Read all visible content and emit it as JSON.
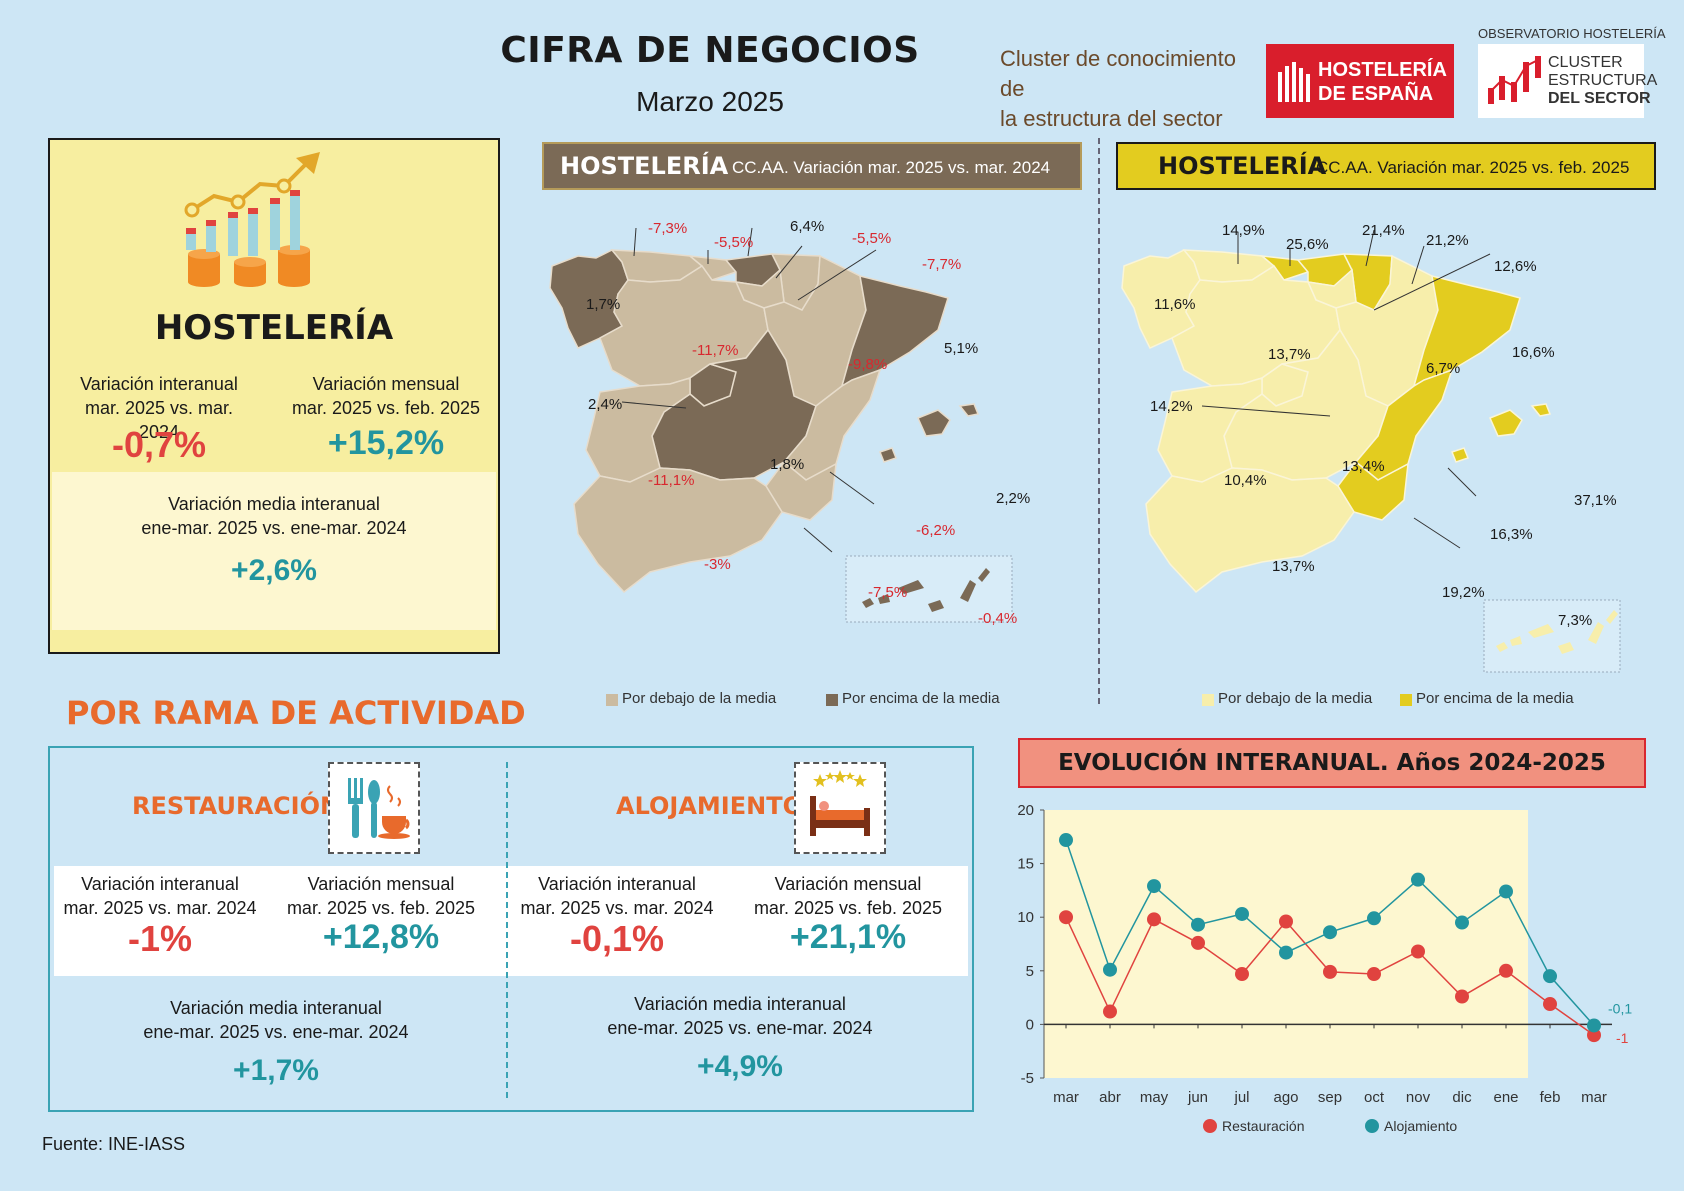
{
  "header": {
    "title": "CIFRA DE NEGOCIOS",
    "subtitle": "Marzo 2025",
    "cluster_text_1": "Cluster de conocimiento de",
    "cluster_text_2": "la estructura del sector",
    "logo_he_1": "HOSTELERÍA",
    "logo_he_2": "DE ESPAÑA",
    "obs_label": "OBSERVATORIO HOSTELERÍA",
    "logo_cl_1": "CLUSTER",
    "logo_cl_2": "ESTRUCTURA",
    "logo_cl_3": "DEL SECTOR"
  },
  "summary": {
    "heading": "HOSTELERÍA",
    "interanual_label_1": "Variación interanual",
    "interanual_label_2": "mar. 2025 vs. mar. 2024",
    "interanual_value": "-0,7%",
    "mensual_label_1": "Variación mensual",
    "mensual_label_2": "mar. 2025 vs. feb. 2025",
    "mensual_value": "+15,2%",
    "media_label_1": "Variación media interanual",
    "media_label_2": "ene-mar. 2025 vs. ene-mar. 2024",
    "media_value": "+2,6%"
  },
  "map_left": {
    "name": "HOSTELERÍA",
    "desc": "CC.AA. Variación mar. 2025 vs. mar. 2024",
    "labels": {
      "galicia": "1,7%",
      "asturias": "-7,3%",
      "cantabria": "-5,5%",
      "pvasco": "6,4%",
      "navarra": "-5,5%",
      "rioja": "-7,7%",
      "cyl": "-11,7%",
      "aragon": "-9,8%",
      "cataluna": "5,1%",
      "madrid": "2,4%",
      "clm": "1,8%",
      "extremadura": "-11,1%",
      "valencia": "-6,2%",
      "baleares": "2,2%",
      "andalucia": "-3%",
      "murcia": "-7,5%",
      "canarias": "-0,4%"
    },
    "legend_below": "Por debajo de la media",
    "legend_above": "Por encima de la media"
  },
  "map_right": {
    "name": "HOSTELERÍA",
    "desc": "CC.AA. Variación mar. 2025 vs. feb. 2025",
    "labels": {
      "asturias": "14,9%",
      "cantabria": "25,6%",
      "pvasco": "21,4%",
      "navarra": "21,2%",
      "rioja": "12,6%",
      "galicia": "11,6%",
      "cyl": "13,7%",
      "aragon": "6,7%",
      "cataluna": "16,6%",
      "madrid": "14,2%",
      "extremadura": "10,4%",
      "clm": "13,4%",
      "valencia": "16,3%",
      "baleares": "37,1%",
      "andalucia": "13,7%",
      "murcia": "19,2%",
      "canarias": "7,3%"
    },
    "legend_below": "Por debajo de la media",
    "legend_above": "Por encima de la media"
  },
  "rama": {
    "title": "POR RAMA DE ACTIVIDAD",
    "restauracion": {
      "name": "RESTAURACIÓN",
      "interanual_label_1": "Variación interanual",
      "interanual_label_2": "mar. 2025 vs. mar. 2024",
      "interanual_value": "-1%",
      "mensual_label_1": "Variación mensual",
      "mensual_label_2": "mar. 2025 vs. feb. 2025",
      "mensual_value": "+12,8%",
      "media_label_1": "Variación media interanual",
      "media_label_2": "ene-mar. 2025 vs. ene-mar. 2024",
      "media_value": "+1,7%"
    },
    "alojamiento": {
      "name": "ALOJAMIENTO",
      "interanual_label_1": "Variación interanual",
      "interanual_label_2": "mar. 2025 vs. mar. 2024",
      "interanual_value": "-0,1%",
      "mensual_label_1": "Variación mensual",
      "mensual_label_2": "mar. 2025 vs. feb. 2025",
      "mensual_value": "+21,1%",
      "media_label_1": "Variación media interanual",
      "media_label_2": "ene-mar. 2025 vs. ene-mar. 2024",
      "media_value": "+4,9%"
    }
  },
  "chart_data": {
    "type": "line",
    "title": "EVOLUCIÓN INTERANUAL. Años 2024-2025",
    "categories": [
      "mar",
      "abr",
      "may",
      "jun",
      "jul",
      "ago",
      "sep",
      "oct",
      "nov",
      "dic",
      "ene",
      "feb",
      "mar"
    ],
    "ylim": [
      -5,
      20
    ],
    "yticks": [
      -5,
      0,
      5,
      10,
      15,
      20
    ],
    "series": [
      {
        "name": "Restauración",
        "color": "#e0433f",
        "values": [
          10,
          1.2,
          9.8,
          7.6,
          4.7,
          9.6,
          4.9,
          4.7,
          6.8,
          2.6,
          5,
          1.9,
          -1
        ]
      },
      {
        "name": "Alojamiento",
        "color": "#22959f",
        "values": [
          17.2,
          5.1,
          12.9,
          9.3,
          10.3,
          6.7,
          8.6,
          9.9,
          13.5,
          9.5,
          12.4,
          4.5,
          -0.1
        ]
      }
    ],
    "end_labels": [
      "-0,1",
      "-1"
    ],
    "highlight_band": "mar-ene",
    "legend": [
      "Restauración",
      "Alojamiento"
    ]
  },
  "footer": {
    "source": "Fuente: INE-IASS"
  },
  "colors": {
    "background": "#cde6f5",
    "below_left": "#cbbba0",
    "above_left": "#7b6a56",
    "below_right": "#f7eeab",
    "above_right": "#e3cc1f",
    "red": "#e0433f",
    "teal": "#22959f",
    "orange": "#e86a2c"
  }
}
